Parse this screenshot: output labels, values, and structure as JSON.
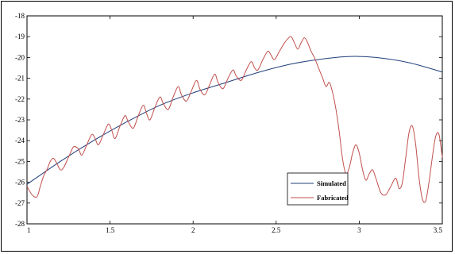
{
  "chart_data": {
    "type": "line",
    "xlim": [
      1,
      3.5
    ],
    "ylim": [
      -28,
      -18
    ],
    "xticks": [
      1,
      1.5,
      2,
      2.5,
      3,
      3.5
    ],
    "xtick_labels": [
      "1",
      "1.5",
      "2",
      "2.5",
      "3",
      "3.5"
    ],
    "yticks": [
      -28,
      -27,
      -26,
      -25,
      -24,
      -23,
      -22,
      -21,
      -20,
      -19,
      -18
    ],
    "ytick_labels": [
      "-28",
      "-27",
      "-26",
      "-25",
      "-24",
      "-23",
      "-22",
      "-21",
      "-20",
      "-19",
      "-18"
    ],
    "grid": false,
    "legend_position": "lower-right",
    "series": [
      {
        "name": "Simulated",
        "color": "#1f3f7a",
        "points": [
          [
            1.0,
            -26.1
          ],
          [
            1.2,
            -25.0
          ],
          [
            1.4,
            -24.0
          ],
          [
            1.6,
            -23.1
          ],
          [
            1.8,
            -22.3
          ],
          [
            2.0,
            -21.7
          ],
          [
            2.2,
            -21.2
          ],
          [
            2.4,
            -20.7
          ],
          [
            2.6,
            -20.3
          ],
          [
            2.8,
            -20.05
          ],
          [
            2.95,
            -19.95
          ],
          [
            3.1,
            -20.0
          ],
          [
            3.3,
            -20.25
          ],
          [
            3.5,
            -20.7
          ]
        ]
      },
      {
        "name": "Fabricated",
        "color": "#c0504d",
        "points": [
          [
            1.0,
            -26.2
          ],
          [
            1.03,
            -26.6
          ],
          [
            1.06,
            -26.7
          ],
          [
            1.08,
            -26.2
          ],
          [
            1.1,
            -25.7
          ],
          [
            1.12,
            -25.4
          ],
          [
            1.14,
            -25.0
          ],
          [
            1.16,
            -24.85
          ],
          [
            1.18,
            -25.1
          ],
          [
            1.2,
            -25.4
          ],
          [
            1.22,
            -25.3
          ],
          [
            1.25,
            -24.8
          ],
          [
            1.28,
            -24.3
          ],
          [
            1.31,
            -24.4
          ],
          [
            1.33,
            -24.7
          ],
          [
            1.36,
            -24.2
          ],
          [
            1.39,
            -23.7
          ],
          [
            1.41,
            -23.9
          ],
          [
            1.43,
            -24.2
          ],
          [
            1.46,
            -23.7
          ],
          [
            1.49,
            -23.2
          ],
          [
            1.51,
            -23.5
          ],
          [
            1.53,
            -23.9
          ],
          [
            1.56,
            -23.3
          ],
          [
            1.59,
            -22.8
          ],
          [
            1.61,
            -23.1
          ],
          [
            1.64,
            -23.4
          ],
          [
            1.67,
            -22.8
          ],
          [
            1.7,
            -22.3
          ],
          [
            1.72,
            -22.7
          ],
          [
            1.74,
            -23.0
          ],
          [
            1.77,
            -22.4
          ],
          [
            1.8,
            -21.9
          ],
          [
            1.82,
            -22.2
          ],
          [
            1.85,
            -22.5
          ],
          [
            1.88,
            -21.9
          ],
          [
            1.91,
            -21.4
          ],
          [
            1.93,
            -21.8
          ],
          [
            1.96,
            -22.1
          ],
          [
            1.99,
            -21.6
          ],
          [
            2.02,
            -21.1
          ],
          [
            2.04,
            -21.5
          ],
          [
            2.07,
            -21.8
          ],
          [
            2.1,
            -21.3
          ],
          [
            2.13,
            -20.8
          ],
          [
            2.15,
            -21.2
          ],
          [
            2.18,
            -21.5
          ],
          [
            2.21,
            -21.0
          ],
          [
            2.24,
            -20.6
          ],
          [
            2.26,
            -20.9
          ],
          [
            2.29,
            -21.1
          ],
          [
            2.32,
            -20.6
          ],
          [
            2.35,
            -20.2
          ],
          [
            2.37,
            -20.5
          ],
          [
            2.39,
            -20.6
          ],
          [
            2.42,
            -20.1
          ],
          [
            2.45,
            -19.7
          ],
          [
            2.47,
            -19.9
          ],
          [
            2.49,
            -20.1
          ],
          [
            2.52,
            -19.7
          ],
          [
            2.55,
            -19.3
          ],
          [
            2.57,
            -19.1
          ],
          [
            2.59,
            -19.0
          ],
          [
            2.61,
            -19.3
          ],
          [
            2.63,
            -19.6
          ],
          [
            2.65,
            -19.3
          ],
          [
            2.67,
            -19.05
          ],
          [
            2.69,
            -19.3
          ],
          [
            2.71,
            -19.7
          ],
          [
            2.73,
            -20.0
          ],
          [
            2.75,
            -20.4
          ],
          [
            2.78,
            -21.0
          ],
          [
            2.8,
            -21.4
          ],
          [
            2.82,
            -21.2
          ],
          [
            2.84,
            -21.7
          ],
          [
            2.86,
            -22.5
          ],
          [
            2.88,
            -23.6
          ],
          [
            2.9,
            -24.9
          ],
          [
            2.92,
            -25.6
          ],
          [
            2.94,
            -25.3
          ],
          [
            2.96,
            -24.6
          ],
          [
            2.98,
            -24.2
          ],
          [
            3.0,
            -24.6
          ],
          [
            3.02,
            -25.4
          ],
          [
            3.04,
            -25.9
          ],
          [
            3.06,
            -25.6
          ],
          [
            3.08,
            -25.4
          ],
          [
            3.1,
            -25.8
          ],
          [
            3.13,
            -26.5
          ],
          [
            3.16,
            -26.6
          ],
          [
            3.19,
            -26.2
          ],
          [
            3.22,
            -25.8
          ],
          [
            3.24,
            -26.3
          ],
          [
            3.26,
            -26.0
          ],
          [
            3.28,
            -24.8
          ],
          [
            3.3,
            -23.6
          ],
          [
            3.32,
            -23.3
          ],
          [
            3.34,
            -24.2
          ],
          [
            3.36,
            -25.8
          ],
          [
            3.38,
            -26.8
          ],
          [
            3.4,
            -26.9
          ],
          [
            3.42,
            -26.0
          ],
          [
            3.44,
            -24.8
          ],
          [
            3.46,
            -23.8
          ],
          [
            3.48,
            -23.7
          ],
          [
            3.5,
            -24.8
          ]
        ]
      }
    ]
  }
}
